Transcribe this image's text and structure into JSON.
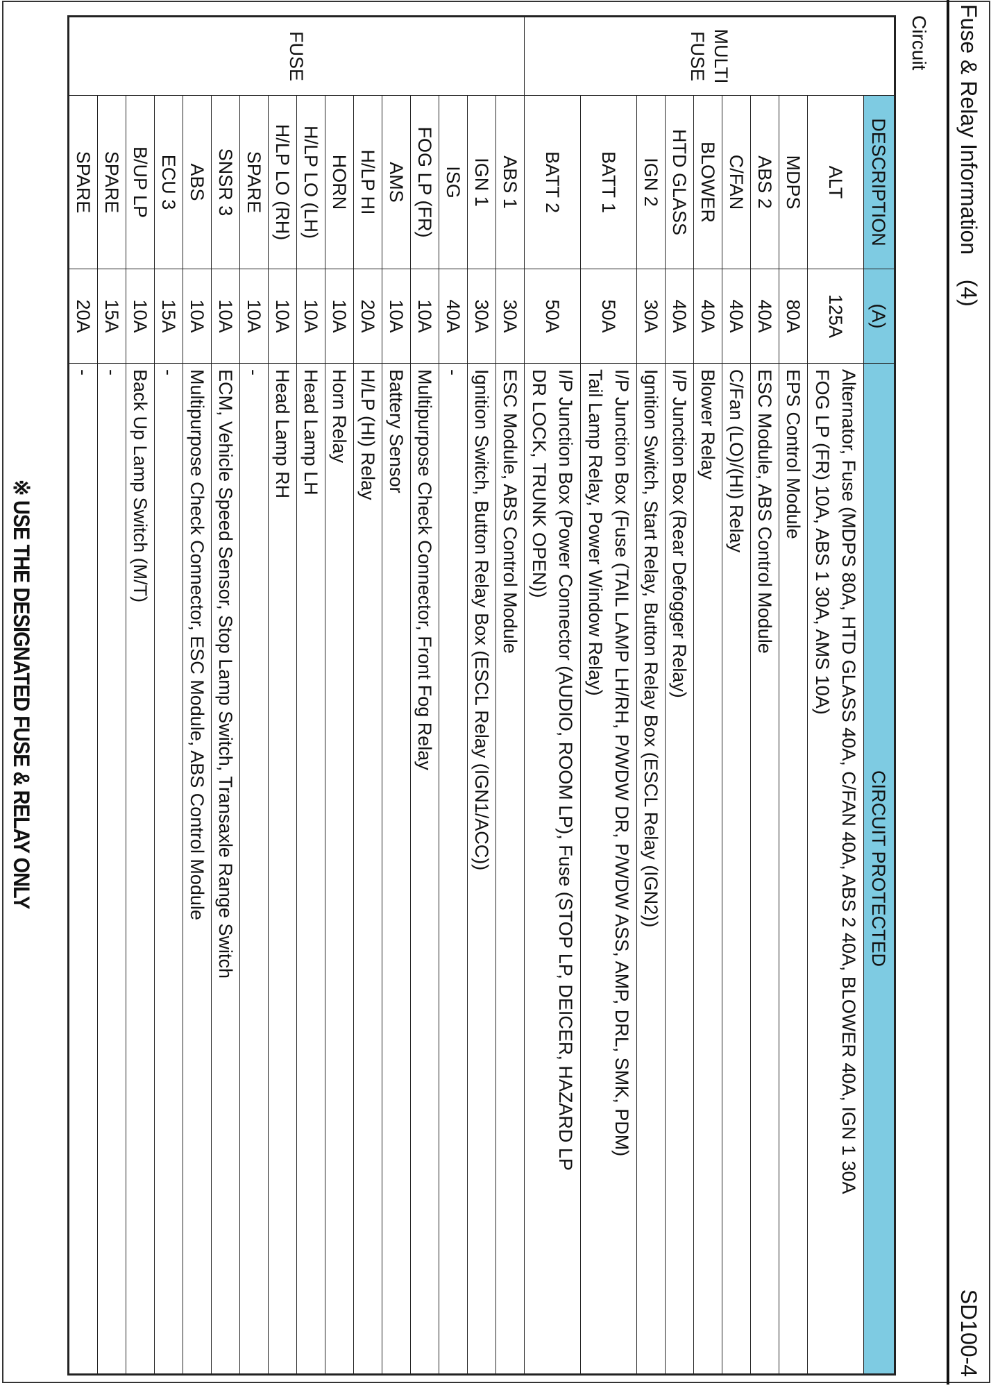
{
  "header": {
    "title": "Fuse & Relay Information    (4)",
    "code": "SD100-4"
  },
  "section_label": "Circuit",
  "table": {
    "columns": [
      "DESCRIPTION",
      "(A)",
      "CIRCUIT PROTECTED"
    ],
    "groups": [
      {
        "label_lines": [
          "MULTI",
          "FUSE"
        ],
        "row_count": 9
      },
      {
        "label_lines": [
          "FUSE"
        ],
        "row_count": 16
      }
    ],
    "header_color": "#7ecbe2",
    "rows": [
      {
        "description": "ALT",
        "amps": "125A",
        "circuit": [
          "Alternator, Fuse (MDPS 80A, HTD GLASS 40A, C/FAN 40A, ABS 2 40A, BLOWER 40A, IGN 1 30A",
          "FOG LP (FR) 10A, ABS 1 30A, AMS 10A)"
        ]
      },
      {
        "description": "MDPS",
        "amps": "80A",
        "circuit": [
          "EPS Control Module"
        ]
      },
      {
        "description": "ABS 2",
        "amps": "40A",
        "circuit": [
          "ESC Module, ABS Control Module"
        ]
      },
      {
        "description": "C/FAN",
        "amps": "40A",
        "circuit": [
          "C/Fan (LO)/(HI) Relay"
        ]
      },
      {
        "description": "BLOWER",
        "amps": "40A",
        "circuit": [
          "Blower Relay"
        ]
      },
      {
        "description": "HTD GLASS",
        "amps": "40A",
        "circuit": [
          "I/P Junction Box (Rear Defogger Relay)"
        ]
      },
      {
        "description": "IGN 2",
        "amps": "30A",
        "circuit": [
          "Ignition Switch, Start Relay, Button Relay Box (ESCL Relay (IGN2))"
        ]
      },
      {
        "description": "BATT 1",
        "amps": "50A",
        "circuit": [
          "I/P Junction Box (Fuse (TAIL LAMP LH/RH, P/WDW DR, P/WDW ASS, AMP, DRL, SMK, PDM)",
          "Tail Lamp Relay, Power Window Relay)"
        ]
      },
      {
        "description": "BATT 2",
        "amps": "50A",
        "circuit": [
          "I/P Junction Box (Power Connector (AUDIO, ROOM LP), Fuse (STOP LP, DEICER, HAZARD LP",
          "DR LOCK, TRUNK OPEN))"
        ]
      },
      {
        "description": "ABS 1",
        "amps": "30A",
        "circuit": [
          "ESC Module, ABS Control Module"
        ]
      },
      {
        "description": "IGN 1",
        "amps": "30A",
        "circuit": [
          "Ignition Switch, Button Relay Box (ESCL Relay (IGN1/ACC))"
        ]
      },
      {
        "description": "ISG",
        "amps": "40A",
        "circuit": [
          "-"
        ]
      },
      {
        "description": "FOG LP (FR)",
        "amps": "10A",
        "circuit": [
          "Multipurpose Check Connector, Front Fog Relay"
        ]
      },
      {
        "description": "AMS",
        "amps": "10A",
        "circuit": [
          "Battery Sensor"
        ]
      },
      {
        "description": "H/LP HI",
        "amps": "20A",
        "circuit": [
          "H/LP (HI) Relay"
        ]
      },
      {
        "description": "HORN",
        "amps": "10A",
        "circuit": [
          "Horn Relay"
        ]
      },
      {
        "description": "H/LP LO (LH)",
        "amps": "10A",
        "circuit": [
          "Head Lamp LH"
        ]
      },
      {
        "description": "H/LP LO (RH)",
        "amps": "10A",
        "circuit": [
          "Head Lamp RH"
        ]
      },
      {
        "description": "SPARE",
        "amps": "10A",
        "circuit": [
          "-"
        ]
      },
      {
        "description": "SNSR 3",
        "amps": "10A",
        "circuit": [
          "ECM, Vehicle Speed Sensor, Stop Lamp Switch, Transaxle Range Switch"
        ]
      },
      {
        "description": "ABS",
        "amps": "10A",
        "circuit": [
          "Multipurpose Check Connector, ESC Module, ABS Control Module"
        ]
      },
      {
        "description": "ECU 3",
        "amps": "15A",
        "circuit": [
          "-"
        ]
      },
      {
        "description": "B/UP LP",
        "amps": "10A",
        "circuit": [
          "Back Up Lamp Switch (M/T)"
        ]
      },
      {
        "description": "SPARE",
        "amps": "15A",
        "circuit": [
          "-"
        ]
      },
      {
        "description": "SPARE",
        "amps": "20A",
        "circuit": [
          "-"
        ]
      }
    ]
  },
  "note": "※ USE THE DESIGNATED FUSE & RELAY ONLY"
}
